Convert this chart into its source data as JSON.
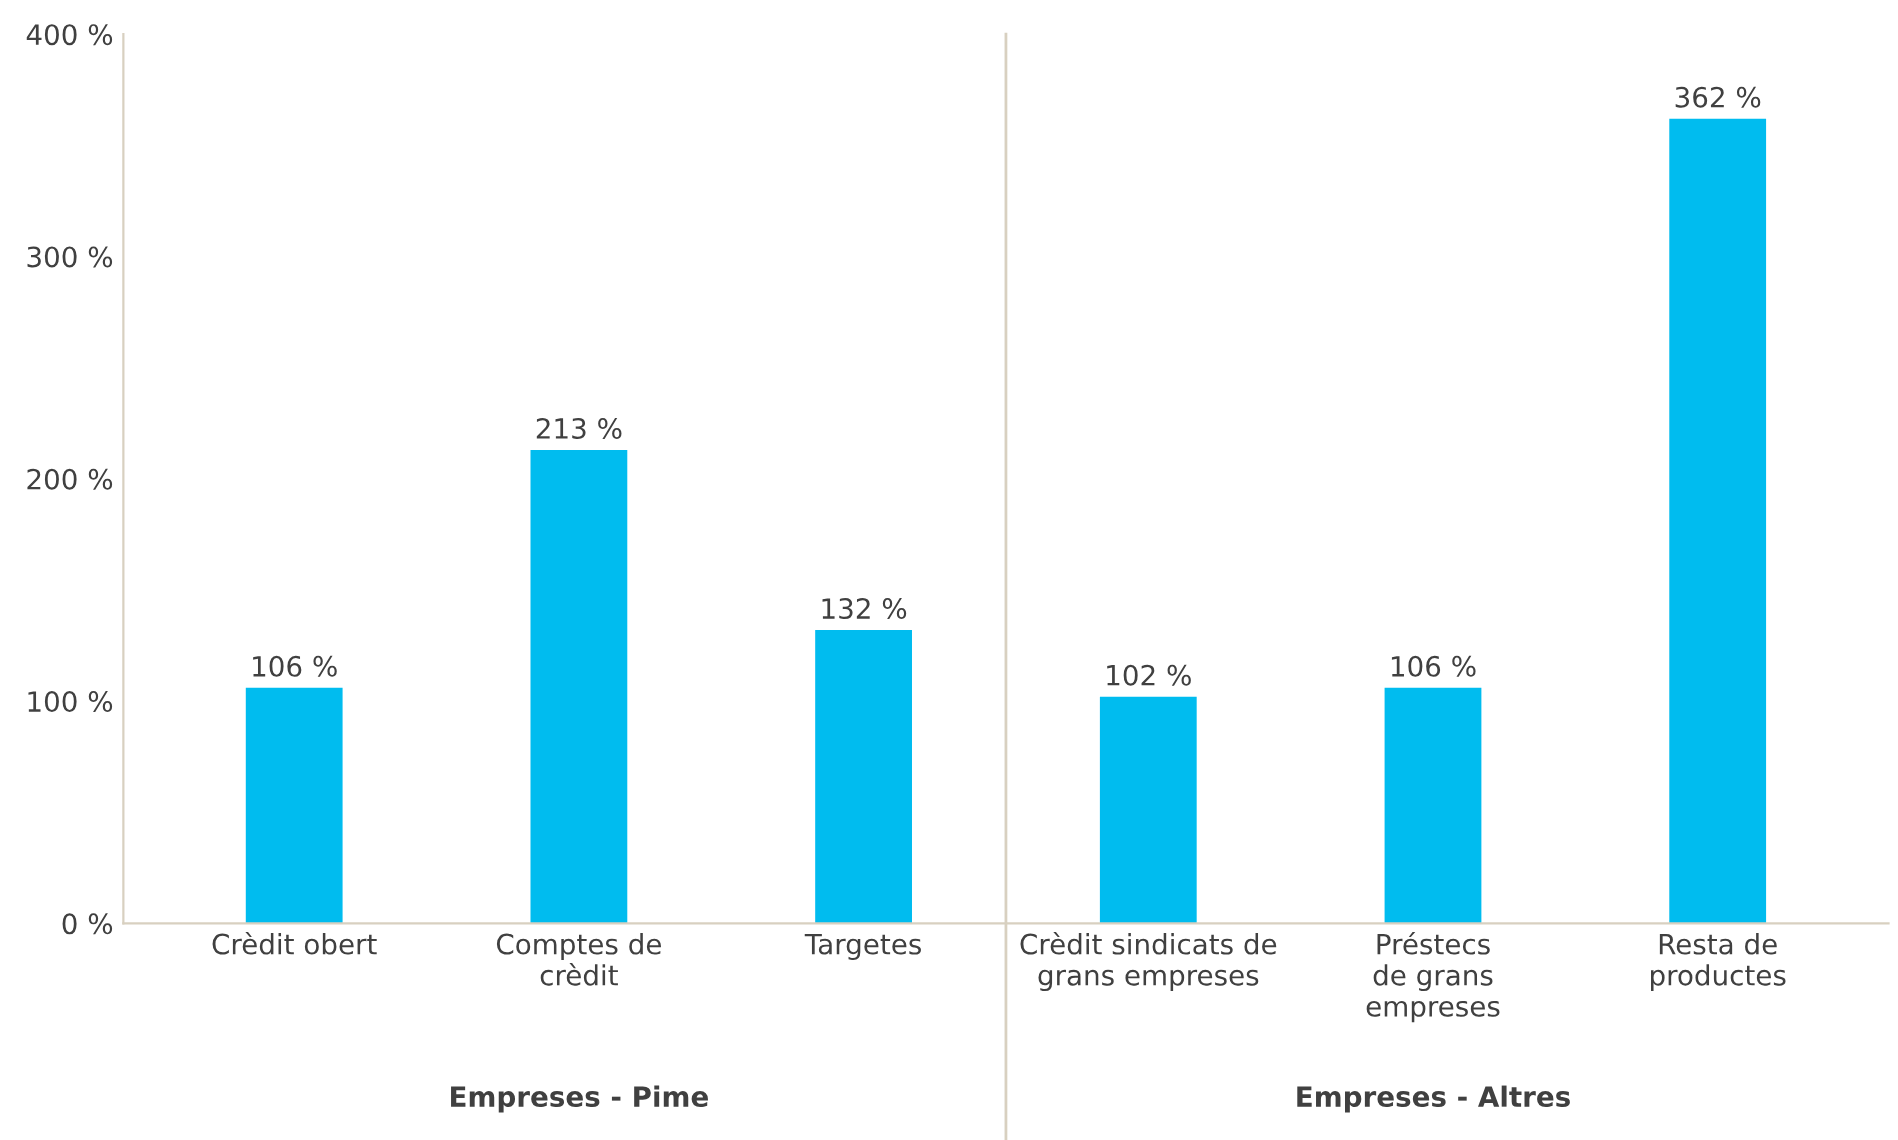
{
  "chart_data": {
    "type": "bar",
    "categories": [
      "Crèdit obert",
      "Comptes de\ncrèdit",
      "Targetes",
      "Crèdit sindicats de\ngrans empreses",
      "Préstecs\nde grans\nempreses",
      "Resta de\nproductes"
    ],
    "values": [
      106,
      213,
      132,
      102,
      106,
      362
    ],
    "color": "#00bcef",
    "value_labels": [
      "106 %",
      "213 %",
      "132 %",
      "102 %",
      "106 %",
      "362 %"
    ],
    "ylim": [
      0,
      400
    ],
    "yticks": [
      {
        "value": 0,
        "label": "0 %"
      },
      {
        "value": 100,
        "label": "100 %"
      },
      {
        "value": 200,
        "label": "200 %"
      },
      {
        "value": 300,
        "label": "300 %"
      },
      {
        "value": 400,
        "label": "400 %"
      }
    ],
    "grid": false,
    "annotations": [
      "Empreses - Pime",
      "Empreses - Altres"
    ]
  }
}
